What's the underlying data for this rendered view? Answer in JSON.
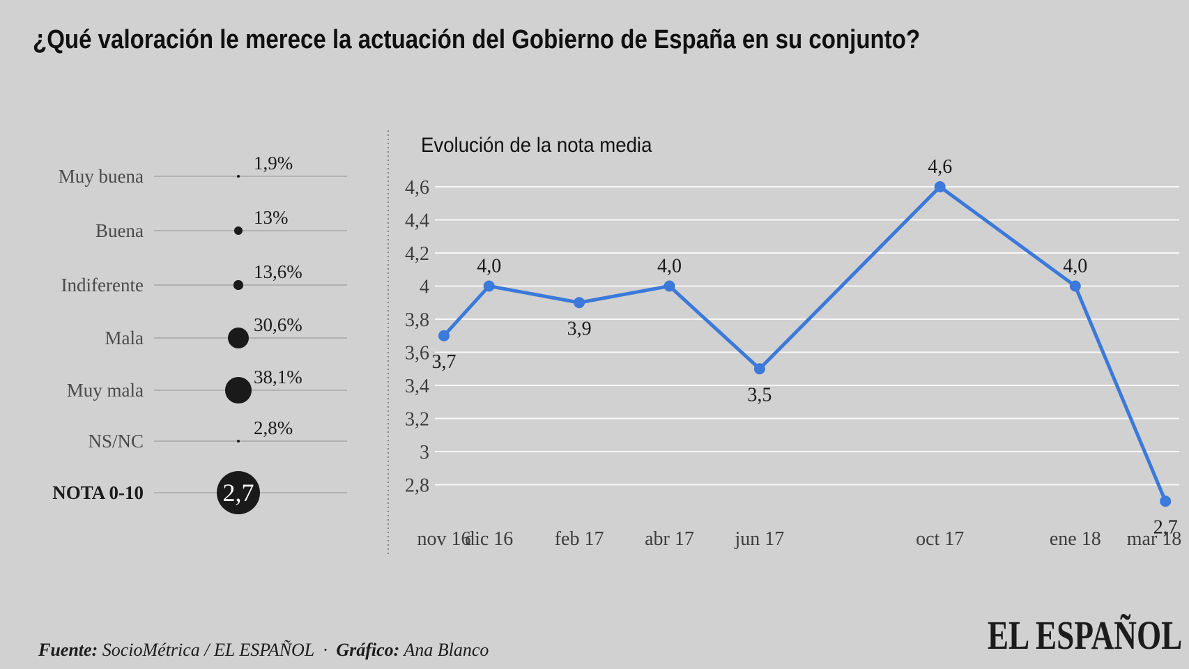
{
  "header": {
    "title": "¿Qué valoración le merece la actuación del Gobierno de España en su conjunto?"
  },
  "chart_data": [
    {
      "type": "scatter",
      "subtype": "sized-dot-rows",
      "categories": [
        "Muy buena",
        "Buena",
        "Indiferente",
        "Mala",
        "Muy mala",
        "NS/NC"
      ],
      "values": [
        1.9,
        13,
        13.6,
        30.6,
        38.1,
        2.8
      ],
      "value_labels": [
        "1,9%",
        "13%",
        "13,6%",
        "30,6%",
        "38,1%",
        "2,8%"
      ],
      "note_label": "NOTA 0-10",
      "note_value": "2,7",
      "bubble_color": "#1a1a1a",
      "leader_line_color": "#b2b1b1",
      "legend": "none"
    },
    {
      "type": "line",
      "title": "Evolución de la nota media",
      "x": [
        "nov 16",
        "dic 16",
        "feb 17",
        "abr 17",
        "jun 17",
        "oct 17",
        "ene 18",
        "mar 18"
      ],
      "month_offsets": [
        0,
        1,
        3,
        5,
        7,
        11,
        14,
        16
      ],
      "values": [
        3.7,
        4.0,
        3.9,
        4.0,
        3.5,
        4.6,
        4.0,
        2.7
      ],
      "labels": [
        "3,7",
        "4,0",
        "3,9",
        "4,0",
        "3,5",
        "4,6",
        "4,0",
        "2,7"
      ],
      "label_pos": [
        "below",
        "above",
        "below",
        "above",
        "below",
        "above",
        "above",
        "below"
      ],
      "yticks": [
        "4,6",
        "4,4",
        "4,2",
        "4",
        "3,8",
        "3,6",
        "3,4",
        "3,2",
        "3",
        "2,8"
      ],
      "ytick_values": [
        4.6,
        4.4,
        4.2,
        4.0,
        3.8,
        3.6,
        3.4,
        3.2,
        3.0,
        2.8
      ],
      "ylim": [
        2.8,
        4.6
      ],
      "xlabel": "",
      "ylabel": "",
      "grid": true,
      "legend": "none",
      "line_color": "#3b79da"
    }
  ],
  "footer": {
    "source_label": "Fuente:",
    "source": "SocioMétrica / EL ESPAÑOL",
    "separator": "·",
    "credit_label": "Gráfico:",
    "credit": "Ana Blanco"
  },
  "logo": {
    "text": "EL ESPAÑOL"
  }
}
